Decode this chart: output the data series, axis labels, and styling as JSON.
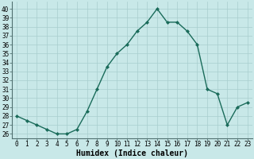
{
  "x": [
    0,
    1,
    2,
    3,
    4,
    5,
    6,
    7,
    8,
    9,
    10,
    11,
    12,
    13,
    14,
    15,
    16,
    17,
    18,
    19,
    20,
    21,
    22,
    23
  ],
  "y": [
    28,
    27.5,
    27,
    26.5,
    26,
    26,
    26.5,
    28.5,
    31,
    33.5,
    35,
    36,
    37.5,
    38.5,
    40,
    38.5,
    38.5,
    37.5,
    36,
    31,
    30.5,
    27,
    29,
    29.5
  ],
  "line_color": "#1a6b5a",
  "marker": "D",
  "marker_size": 2.0,
  "bg_color": "#c8e8e8",
  "grid_color": "#a8cece",
  "xlabel": "Humidex (Indice chaleur)",
  "ylim": [
    25.5,
    40.8
  ],
  "xlim": [
    -0.5,
    23.5
  ],
  "yticks": [
    26,
    27,
    28,
    29,
    30,
    31,
    32,
    33,
    34,
    35,
    36,
    37,
    38,
    39,
    40
  ],
  "xticks": [
    0,
    1,
    2,
    3,
    4,
    5,
    6,
    7,
    8,
    9,
    10,
    11,
    12,
    13,
    14,
    15,
    16,
    17,
    18,
    19,
    20,
    21,
    22,
    23
  ],
  "xlabel_fontsize": 7.0,
  "tick_fontsize": 5.5,
  "line_width": 1.0
}
